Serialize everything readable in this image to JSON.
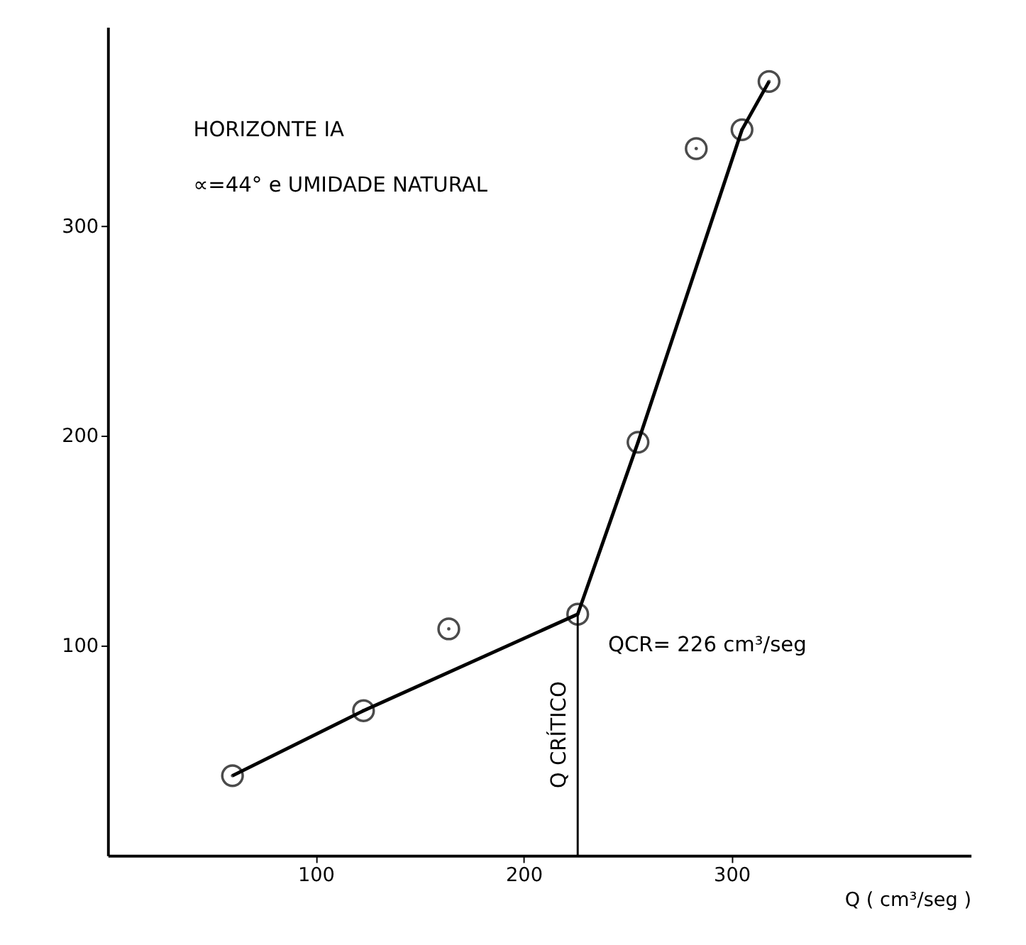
{
  "chart_data": {
    "type": "scatter",
    "xlabel": "Q ( cm³/seg )",
    "annotations": [
      "HORIZONTE IA",
      "∝=44° e UMIDADE NATURAL",
      {
        "text": "QCR= 226 cm³/seg",
        "x": 226,
        "y": 115
      }
    ],
    "xlim": [
      0,
      415
    ],
    "xticks": [
      100,
      200,
      300
    ],
    "ylim": [
      0,
      395
    ],
    "yticks": [
      100,
      200,
      300
    ],
    "marker": "circle",
    "grid": false,
    "series": [
      {
        "color": "#000000",
        "x": [
          60,
          123,
          164,
          226,
          255,
          283,
          305,
          318
        ],
        "values": [
          38,
          69,
          108,
          115,
          197,
          337,
          346,
          369
        ]
      },
      {
        "type": "line",
        "marker": "none",
        "color": "#000000",
        "x": [
          60,
          123,
          226,
          255,
          305,
          318
        ],
        "values": [
          38,
          69,
          115,
          197,
          346,
          369
        ]
      }
    ],
    "ref_lines": [
      {
        "axis": "x",
        "value": 226,
        "label": "Q CRÍTICO"
      }
    ]
  }
}
